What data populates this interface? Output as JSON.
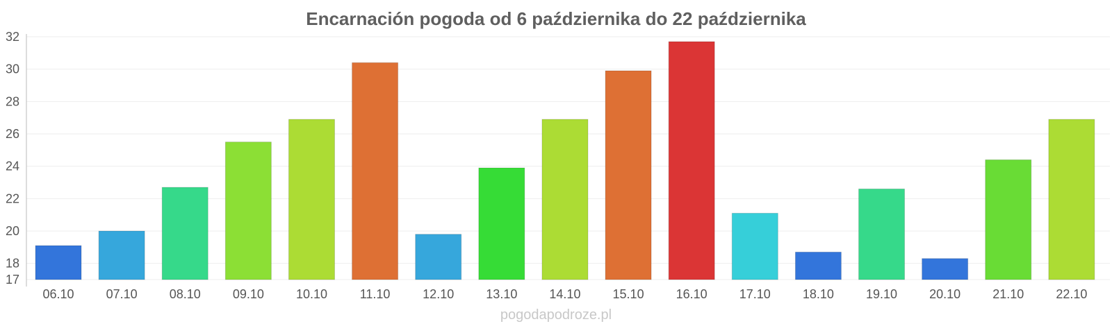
{
  "chart_data": {
    "type": "bar",
    "title": "Encarnación pogoda od 6 października do 22 października",
    "xlabel": "",
    "ylabel": "",
    "ylim": [
      17,
      32
    ],
    "yticks": [
      17,
      18,
      20,
      22,
      24,
      26,
      28,
      30,
      32
    ],
    "grid": true,
    "legend": "none",
    "categories": [
      "06.10",
      "07.10",
      "08.10",
      "09.10",
      "10.10",
      "11.10",
      "12.10",
      "13.10",
      "14.10",
      "15.10",
      "16.10",
      "17.10",
      "18.10",
      "19.10",
      "20.10",
      "21.10",
      "22.10"
    ],
    "values": [
      19.1,
      20.0,
      22.7,
      25.5,
      26.9,
      30.4,
      19.8,
      23.9,
      26.9,
      29.9,
      31.7,
      21.1,
      18.7,
      22.6,
      18.3,
      24.4,
      26.9
    ],
    "colors": [
      "#3375db",
      "#36a7dc",
      "#36d98a",
      "#8cdf35",
      "#acdc34",
      "#de7034",
      "#36a7dc",
      "#36dc36",
      "#acdc34",
      "#de7034",
      "#db3535",
      "#36cfd9",
      "#3375db",
      "#36d98a",
      "#3375db",
      "#69dc35",
      "#acdc34"
    ]
  },
  "watermark": "pogodapodroze.pl"
}
